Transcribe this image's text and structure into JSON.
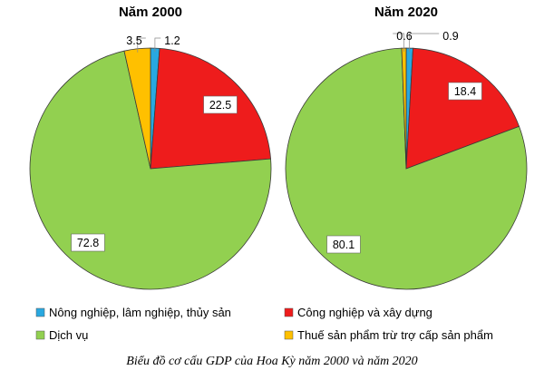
{
  "chart_data": {
    "type": "pie",
    "caption": "Biểu đồ cơ cấu GDP của Hoa Kỳ năm 2000 và năm 2020",
    "categories": [
      "Nông nghiệp, lâm nghiệp, thủy sản",
      "Công nghiệp và xây dựng",
      "Dịch vụ",
      "Thuế sản phẩm trừ trợ cấp sản phẩm"
    ],
    "colors": [
      "#29a8e0",
      "#ee1c1c",
      "#92d050",
      "#ffc000"
    ],
    "legend_placement": "bottom",
    "charts": [
      {
        "title": "Năm 2000",
        "values": [
          1.2,
          22.5,
          72.8,
          3.5
        ],
        "labels": [
          "1.2",
          "22.5",
          "72.8",
          "3.5"
        ]
      },
      {
        "title": "Năm 2020",
        "values": [
          0.9,
          18.4,
          80.1,
          0.6
        ],
        "labels": [
          "0.9",
          "18.4",
          "80.1",
          "0.6"
        ]
      }
    ]
  }
}
